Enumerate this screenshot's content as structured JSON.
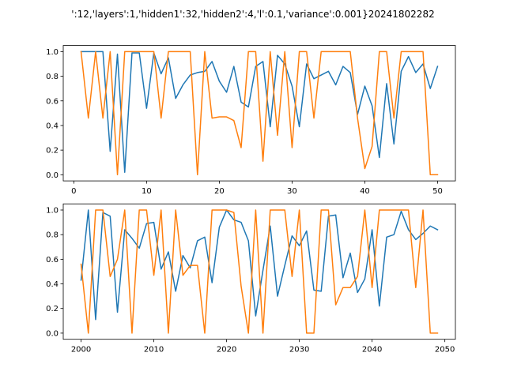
{
  "title": "':12,'layers':1,'hidden1':32,'hidden2':4,'l':0.1,'variance':0.001}20241802282",
  "colors": {
    "blue": "#1f77b4",
    "orange": "#ff7f0e"
  },
  "chart_data": [
    {
      "type": "line",
      "xlim": [
        -1.45,
        52.45
      ],
      "ylim": [
        -0.05,
        1.05
      ],
      "xticks": [
        0,
        10,
        20,
        30,
        40,
        50
      ],
      "yticks": [
        0.0,
        0.2,
        0.4,
        0.6,
        0.8,
        1.0
      ],
      "xtick_labels": [
        "0",
        "10",
        "20",
        "30",
        "40",
        "50"
      ],
      "ytick_labels": [
        "0.0",
        "0.2",
        "0.4",
        "0.6",
        "0.8",
        "1.0"
      ],
      "x": [
        1,
        2,
        3,
        4,
        5,
        6,
        7,
        8,
        9,
        10,
        11,
        12,
        13,
        14,
        15,
        16,
        17,
        18,
        19,
        20,
        21,
        22,
        23,
        24,
        25,
        26,
        27,
        28,
        29,
        30,
        31,
        32,
        33,
        34,
        35,
        36,
        37,
        38,
        39,
        40,
        41,
        42,
        43,
        44,
        45,
        46,
        47,
        48,
        49,
        50
      ],
      "series": [
        {
          "color": "blue",
          "values": [
            1.0,
            1.0,
            1.0,
            1.0,
            0.19,
            0.98,
            0.02,
            0.99,
            0.99,
            0.54,
            0.99,
            0.82,
            0.95,
            0.62,
            0.73,
            0.81,
            0.83,
            0.84,
            0.92,
            0.76,
            0.67,
            0.88,
            0.59,
            0.55,
            0.88,
            0.92,
            0.39,
            0.97,
            0.9,
            0.72,
            0.39,
            0.9,
            0.78,
            0.81,
            0.84,
            0.73,
            0.88,
            0.83,
            0.49,
            0.72,
            0.56,
            0.14,
            0.74,
            0.25,
            0.84,
            0.96,
            0.83,
            0.9,
            0.7,
            0.88
          ]
        },
        {
          "color": "orange",
          "values": [
            1.0,
            0.46,
            1.0,
            0.46,
            1.0,
            0.0,
            1.0,
            1.0,
            1.0,
            1.0,
            1.0,
            0.46,
            1.0,
            1.0,
            1.0,
            1.0,
            0.0,
            1.0,
            0.46,
            0.47,
            0.47,
            0.44,
            0.22,
            1.0,
            1.0,
            0.11,
            1.0,
            0.32,
            1.0,
            0.22,
            1.0,
            1.0,
            0.46,
            1.0,
            1.0,
            1.0,
            1.0,
            1.0,
            0.46,
            0.05,
            0.23,
            1.0,
            1.0,
            0.46,
            1.0,
            1.0,
            1.0,
            1.0,
            0.0,
            0.0
          ]
        }
      ]
    },
    {
      "type": "line",
      "xlim": [
        1997.55,
        2051.45
      ],
      "ylim": [
        -0.05,
        1.05
      ],
      "xticks": [
        2000,
        2010,
        2020,
        2030,
        2040,
        2050
      ],
      "yticks": [
        0.0,
        0.2,
        0.4,
        0.6,
        0.8,
        1.0
      ],
      "xtick_labels": [
        "2000",
        "2010",
        "2020",
        "2030",
        "2040",
        "2050"
      ],
      "ytick_labels": [
        "0.0",
        "0.2",
        "0.4",
        "0.6",
        "0.8",
        "1.0"
      ],
      "x": [
        2000,
        2001,
        2002,
        2003,
        2004,
        2005,
        2006,
        2007,
        2008,
        2009,
        2010,
        2011,
        2012,
        2013,
        2014,
        2015,
        2016,
        2017,
        2018,
        2019,
        2020,
        2021,
        2022,
        2023,
        2024,
        2025,
        2026,
        2027,
        2028,
        2029,
        2030,
        2031,
        2032,
        2033,
        2034,
        2035,
        2036,
        2037,
        2038,
        2039,
        2040,
        2041,
        2042,
        2043,
        2044,
        2045,
        2046,
        2047,
        2048,
        2049
      ],
      "series": [
        {
          "color": "blue",
          "values": [
            0.43,
            1.0,
            0.11,
            0.98,
            0.95,
            0.17,
            0.84,
            0.77,
            0.69,
            0.89,
            0.9,
            0.52,
            0.66,
            0.34,
            0.63,
            0.53,
            0.75,
            0.78,
            0.41,
            0.86,
            1.0,
            0.92,
            0.9,
            0.75,
            0.14,
            0.51,
            0.87,
            0.3,
            0.55,
            0.79,
            0.71,
            0.83,
            0.35,
            0.34,
            0.95,
            0.96,
            0.45,
            0.65,
            0.33,
            0.44,
            0.84,
            0.22,
            0.78,
            0.8,
            0.99,
            0.84,
            0.76,
            0.81,
            0.87,
            0.84
          ]
        },
        {
          "color": "orange",
          "values": [
            0.56,
            0.0,
            1.0,
            1.0,
            0.46,
            0.6,
            1.0,
            0.0,
            1.0,
            1.0,
            0.47,
            1.0,
            0.0,
            1.0,
            0.47,
            0.55,
            0.55,
            0.0,
            1.0,
            1.0,
            1.0,
            0.98,
            0.38,
            0.0,
            1.0,
            0.0,
            1.0,
            1.0,
            1.0,
            0.46,
            1.0,
            0.0,
            0.0,
            1.0,
            1.0,
            0.23,
            0.37,
            0.37,
            0.46,
            1.0,
            0.37,
            1.0,
            1.0,
            1.0,
            1.0,
            1.0,
            0.37,
            1.0,
            0.0,
            0.0
          ]
        }
      ]
    }
  ]
}
